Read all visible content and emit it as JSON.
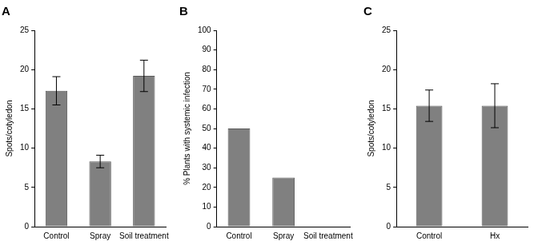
{
  "chart_data": [
    {
      "type": "bar",
      "title": "A",
      "categories": [
        "Control",
        "Spray",
        "Soil treatment"
      ],
      "values": [
        17.3,
        8.3,
        19.2
      ],
      "errors": [
        1.8,
        0.8,
        2.0
      ],
      "color": "#808080",
      "y_label": "Spots/cotyledon",
      "ylim": [
        0,
        25
      ],
      "yticks": [
        0,
        5,
        10,
        15,
        20,
        25
      ],
      "grid": false
    },
    {
      "type": "bar",
      "title": "B",
      "categories": [
        "Control",
        "Spray",
        "Soil treatment"
      ],
      "values": [
        50,
        25,
        0
      ],
      "color": "#808080",
      "y_label": "% Plants with systemic infection",
      "ylim": [
        0,
        100
      ],
      "yticks": [
        0,
        10,
        20,
        30,
        40,
        50,
        60,
        70,
        80,
        90,
        100
      ],
      "grid": false
    },
    {
      "type": "bar",
      "title": "C",
      "categories": [
        "Control",
        "Hx"
      ],
      "values": [
        15.4,
        15.4
      ],
      "errors": [
        2.0,
        2.8
      ],
      "color": "#808080",
      "y_label": "Spots/cotyledon",
      "ylim": [
        0,
        25
      ],
      "yticks": [
        0,
        5,
        10,
        15,
        20,
        25
      ],
      "grid": false
    }
  ]
}
